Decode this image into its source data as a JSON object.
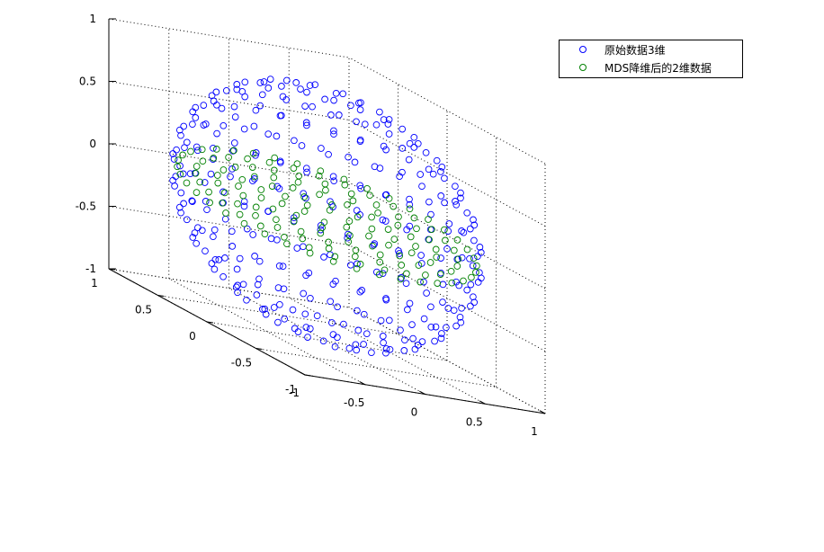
{
  "chart_data": {
    "type": "scatter",
    "projection": "3d",
    "title": "",
    "xlabel": "",
    "ylabel": "",
    "zlabel": "",
    "xlim": [
      -1,
      1
    ],
    "ylim": [
      -1,
      1
    ],
    "zlim": [
      -1,
      1
    ],
    "xticks": [
      "-1",
      "-0.5",
      "0",
      "0.5",
      "1"
    ],
    "yticks": [
      "-1",
      "-0.5",
      "0",
      "0.5",
      "1"
    ],
    "zticks": [
      "-1",
      "-0.5",
      "0",
      "0.5",
      "1"
    ],
    "grid": true,
    "legend_position": "top-right",
    "series": [
      {
        "name": "原始数据3维",
        "color": "#0000ff",
        "marker": "circle-open",
        "shape": "sphere",
        "radius": 1,
        "ring_count": 14
      },
      {
        "name": "MDS降维后的2维数据",
        "color": "#008000",
        "marker": "circle-open",
        "shape": "disk",
        "radius": 1,
        "plane": "tilted"
      }
    ]
  }
}
